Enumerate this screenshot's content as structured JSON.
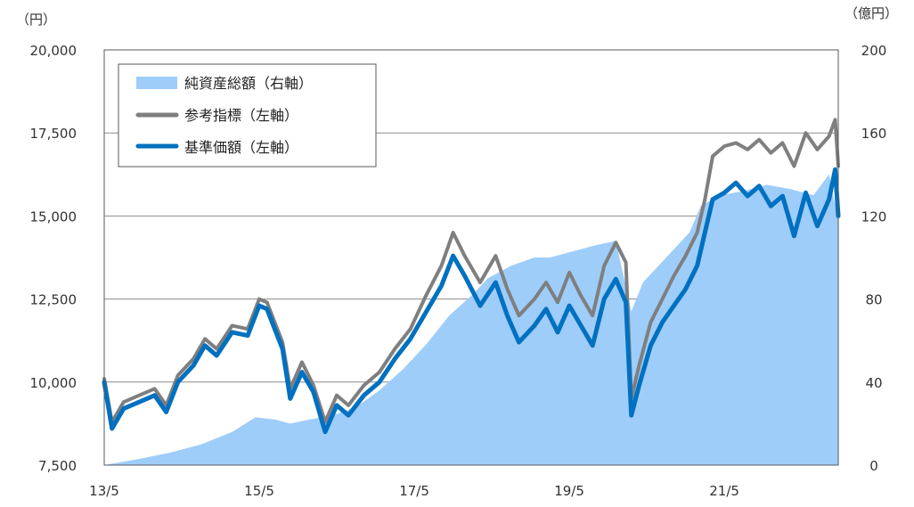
{
  "chart_data": {
    "type": "line",
    "left_axis_unit": "（円）",
    "right_axis_unit": "（億円）",
    "left_ylim": [
      7500,
      20000
    ],
    "left_ticks": [
      "7,500",
      "10,000",
      "12,500",
      "15,000",
      "17,500",
      "20,000"
    ],
    "left_tick_values": [
      7500,
      10000,
      12500,
      15000,
      17500,
      20000
    ],
    "right_ylim": [
      0,
      200
    ],
    "right_ticks": [
      "0",
      "40",
      "80",
      "120",
      "160",
      "200"
    ],
    "right_tick_values": [
      0,
      40,
      80,
      120,
      160,
      200
    ],
    "x_ticks": [
      "13/5",
      "15/5",
      "17/5",
      "19/5",
      "21/5"
    ],
    "x_tick_values": [
      2013.35,
      2015.35,
      2017.35,
      2019.35,
      2021.35
    ],
    "xlim": [
      2013.35,
      2022.82
    ],
    "grid": "horizontal",
    "legend_position": "top-left",
    "legend": [
      {
        "label": "純資産総額（右軸）",
        "style": "area",
        "color": "#9ecdfa"
      },
      {
        "label": "参考指標（左軸）",
        "style": "line",
        "color": "#7f7f7f"
      },
      {
        "label": "基準価額（左軸）",
        "style": "line",
        "color": "#0070c0"
      }
    ],
    "series": [
      {
        "name": "純資産総額（右軸）",
        "axis": "right",
        "type": "area",
        "color": "#9ecdfa",
        "x": [
          2013.35,
          2013.8,
          2014.2,
          2014.6,
          2015.0,
          2015.3,
          2015.55,
          2015.75,
          2016.0,
          2016.3,
          2016.6,
          2016.9,
          2017.2,
          2017.5,
          2017.8,
          2018.1,
          2018.3,
          2018.6,
          2018.9,
          2019.1,
          2019.4,
          2019.7,
          2019.95,
          2020.15,
          2020.3,
          2020.6,
          2020.9,
          2021.05,
          2021.3,
          2021.6,
          2021.9,
          2022.2,
          2022.5,
          2022.7,
          2022.82
        ],
        "y": [
          0,
          3,
          6,
          10,
          16,
          23,
          22,
          20,
          22,
          24,
          28,
          36,
          46,
          58,
          72,
          82,
          90,
          96,
          100,
          100,
          103,
          106,
          108,
          74,
          88,
          100,
          112,
          125,
          130,
          132,
          135,
          133,
          130,
          140,
          118
        ]
      },
      {
        "name": "参考指標（左軸）",
        "axis": "left",
        "type": "line",
        "color": "#7f7f7f",
        "x": [
          2013.35,
          2013.45,
          2013.6,
          2013.8,
          2014.0,
          2014.15,
          2014.3,
          2014.5,
          2014.65,
          2014.8,
          2015.0,
          2015.2,
          2015.35,
          2015.45,
          2015.55,
          2015.65,
          2015.75,
          2015.9,
          2016.05,
          2016.2,
          2016.35,
          2016.5,
          2016.7,
          2016.9,
          2017.1,
          2017.3,
          2017.5,
          2017.7,
          2017.85,
          2018.0,
          2018.2,
          2018.4,
          2018.55,
          2018.7,
          2018.9,
          2019.05,
          2019.2,
          2019.35,
          2019.5,
          2019.65,
          2019.8,
          2019.95,
          2020.08,
          2020.15,
          2020.25,
          2020.4,
          2020.55,
          2020.7,
          2020.85,
          2021.0,
          2021.1,
          2021.2,
          2021.35,
          2021.5,
          2021.65,
          2021.8,
          2021.95,
          2022.1,
          2022.25,
          2022.4,
          2022.55,
          2022.7,
          2022.78,
          2022.82
        ],
        "y": [
          10100,
          8800,
          9400,
          9600,
          9800,
          9300,
          10200,
          10700,
          11300,
          11000,
          11700,
          11600,
          12500,
          12400,
          11800,
          11200,
          9800,
          10600,
          9900,
          8800,
          9600,
          9300,
          9900,
          10300,
          11000,
          11600,
          12600,
          13500,
          14500,
          13800,
          13000,
          13800,
          12800,
          12000,
          12500,
          13000,
          12400,
          13300,
          12600,
          12000,
          13500,
          14200,
          13600,
          9500,
          10500,
          11800,
          12500,
          13200,
          13800,
          14500,
          15500,
          16800,
          17100,
          17200,
          17000,
          17300,
          16900,
          17200,
          16500,
          17500,
          17000,
          17400,
          17900,
          16500
        ]
      },
      {
        "name": "基準価額（左軸）",
        "axis": "left",
        "type": "line",
        "color": "#0070c0",
        "x": [
          2013.35,
          2013.45,
          2013.6,
          2013.8,
          2014.0,
          2014.15,
          2014.3,
          2014.5,
          2014.65,
          2014.8,
          2015.0,
          2015.2,
          2015.35,
          2015.45,
          2015.55,
          2015.65,
          2015.75,
          2015.9,
          2016.05,
          2016.2,
          2016.35,
          2016.5,
          2016.7,
          2016.9,
          2017.1,
          2017.3,
          2017.5,
          2017.7,
          2017.85,
          2018.0,
          2018.2,
          2018.4,
          2018.55,
          2018.7,
          2018.9,
          2019.05,
          2019.2,
          2019.35,
          2019.5,
          2019.65,
          2019.8,
          2019.95,
          2020.08,
          2020.15,
          2020.25,
          2020.4,
          2020.55,
          2020.7,
          2020.85,
          2021.0,
          2021.1,
          2021.2,
          2021.35,
          2021.5,
          2021.65,
          2021.8,
          2021.95,
          2022.1,
          2022.25,
          2022.4,
          2022.55,
          2022.7,
          2022.78,
          2022.82
        ],
        "y": [
          10000,
          8600,
          9200,
          9400,
          9600,
          9100,
          10000,
          10500,
          11100,
          10800,
          11500,
          11400,
          12300,
          12200,
          11600,
          11000,
          9500,
          10300,
          9700,
          8500,
          9300,
          9000,
          9600,
          10000,
          10700,
          11300,
          12100,
          12900,
          13800,
          13200,
          12300,
          13000,
          12000,
          11200,
          11700,
          12200,
          11500,
          12300,
          11700,
          11100,
          12500,
          13100,
          12400,
          9000,
          9900,
          11100,
          11800,
          12300,
          12800,
          13500,
          14500,
          15500,
          15700,
          16000,
          15600,
          15900,
          15300,
          15600,
          14400,
          15700,
          14700,
          15500,
          16400,
          15000
        ]
      }
    ]
  }
}
